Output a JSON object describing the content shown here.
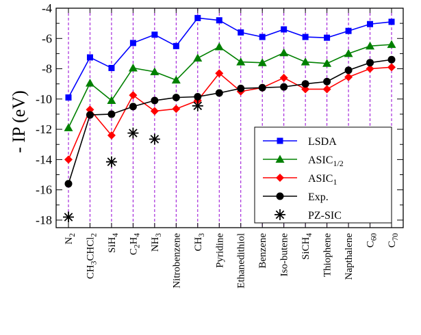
{
  "chart_data": {
    "type": "line",
    "title": "",
    "ylabel": "- IP (eV)",
    "xlabel": "",
    "ylim": [
      -18.5,
      -4
    ],
    "yticks": [
      -18,
      -16,
      -14,
      -12,
      -10,
      -8,
      -6,
      -4
    ],
    "ytick_labels": [
      "-18",
      "-16",
      "-14",
      "-12",
      "-10",
      "-8",
      "-6",
      "-4"
    ],
    "grid": "vertical dashed lines at each category",
    "grid_color": "#9400d3",
    "legend_position": "lower-right",
    "categories": [
      {
        "parts": [
          [
            "N",
            ""
          ],
          [
            "2",
            "sub"
          ]
        ]
      },
      {
        "parts": [
          [
            "CH",
            ""
          ],
          [
            "3",
            "sub"
          ],
          [
            "CHCl",
            ""
          ],
          [
            "2",
            "sub"
          ]
        ]
      },
      {
        "parts": [
          [
            "SiH",
            ""
          ],
          [
            "4",
            "sub"
          ]
        ]
      },
      {
        "parts": [
          [
            "C",
            ""
          ],
          [
            "2",
            "sub"
          ],
          [
            "H",
            ""
          ],
          [
            "4",
            "sub"
          ]
        ]
      },
      {
        "parts": [
          [
            "NH",
            ""
          ],
          [
            "3",
            "sub"
          ]
        ]
      },
      {
        "parts": [
          [
            "Nitrobenzene",
            ""
          ]
        ]
      },
      {
        "parts": [
          [
            "CH",
            ""
          ],
          [
            "3",
            "sub"
          ]
        ]
      },
      {
        "parts": [
          [
            "Pyridine",
            ""
          ]
        ]
      },
      {
        "parts": [
          [
            "Ethanedithiol",
            ""
          ]
        ]
      },
      {
        "parts": [
          [
            "Benzene",
            ""
          ]
        ]
      },
      {
        "parts": [
          [
            "Iso-butene",
            ""
          ]
        ]
      },
      {
        "parts": [
          [
            "SiCH",
            ""
          ],
          [
            "4",
            "sub"
          ]
        ]
      },
      {
        "parts": [
          [
            "Thiophene",
            ""
          ]
        ]
      },
      {
        "parts": [
          [
            "Napthalene",
            ""
          ]
        ]
      },
      {
        "parts": [
          [
            "C",
            ""
          ],
          [
            "60",
            "sub"
          ]
        ]
      },
      {
        "parts": [
          [
            "C",
            ""
          ],
          [
            "70",
            "sub"
          ]
        ]
      }
    ],
    "series": [
      {
        "name": "LSDA",
        "label_parts": [
          [
            "LSDA",
            ""
          ]
        ],
        "color": "#0000ff",
        "marker": "square",
        "values": [
          -9.9,
          -7.25,
          -7.95,
          -6.3,
          -5.75,
          -6.5,
          -4.65,
          -4.8,
          -5.6,
          -5.9,
          -5.4,
          -5.9,
          -5.95,
          -5.5,
          -5.05,
          -4.9
        ]
      },
      {
        "name": "ASIC1/2",
        "label_parts": [
          [
            "ASIC",
            ""
          ],
          [
            "1/2",
            "sub"
          ]
        ],
        "color": "#008000",
        "marker": "triangle",
        "values": [
          -11.9,
          -8.95,
          -10.1,
          -7.95,
          -8.2,
          -8.75,
          -7.3,
          -6.55,
          -7.55,
          -7.6,
          -6.95,
          -7.55,
          -7.65,
          -7.0,
          -6.5,
          -6.4
        ]
      },
      {
        "name": "ASIC1",
        "label_parts": [
          [
            "ASIC",
            ""
          ],
          [
            "1",
            "sub"
          ]
        ],
        "color": "#ff0000",
        "marker": "diamond",
        "values": [
          -14.0,
          -10.7,
          -12.4,
          -9.75,
          -10.8,
          -10.65,
          -10.1,
          -8.3,
          -9.5,
          -9.25,
          -8.6,
          -9.35,
          -9.35,
          -8.55,
          -8.0,
          -7.9
        ]
      },
      {
        "name": "Exp.",
        "label_parts": [
          [
            "Exp.",
            ""
          ]
        ],
        "color": "#000000",
        "marker": "circle",
        "values": [
          -15.6,
          -11.05,
          -11.0,
          -10.5,
          -10.1,
          -9.9,
          -9.85,
          -9.6,
          -9.3,
          -9.25,
          -9.2,
          -9.0,
          -8.85,
          -8.1,
          -7.6,
          -7.4
        ]
      },
      {
        "name": "PZ-SIC",
        "label_parts": [
          [
            "PZ-SIC",
            ""
          ]
        ],
        "color": "#000000",
        "marker": "asterisk",
        "no_line": true,
        "values": [
          -17.8,
          null,
          -14.15,
          -12.25,
          -12.65,
          null,
          -10.45,
          null,
          null,
          null,
          null,
          null,
          null,
          null,
          null,
          null
        ]
      }
    ]
  }
}
